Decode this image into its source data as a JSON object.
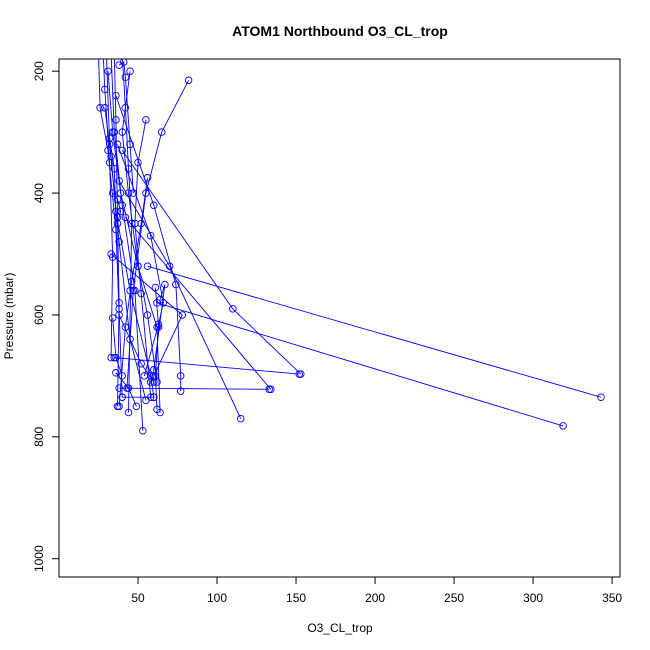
{
  "chart_data": {
    "type": "line",
    "title": "ATOM1 Northbound O3_CL_trop",
    "xlabel": "O3_CL_trop",
    "ylabel": "Pressure (mbar)",
    "xlim": [
      0,
      355
    ],
    "ylim": [
      1030,
      180
    ],
    "y_reversed": true,
    "xticks": [
      50,
      100,
      150,
      200,
      250,
      300,
      350
    ],
    "yticks": [
      200,
      400,
      600,
      800,
      1000
    ],
    "grid": false,
    "legend": "none",
    "series_color": "#0000ff",
    "marker": "open-circle",
    "series": [
      {
        "values": [
          [
            30,
            170
          ],
          [
            32,
            320
          ],
          [
            38,
            480
          ],
          [
            45,
            640
          ],
          [
            55,
            740
          ]
        ]
      },
      {
        "values": [
          [
            33,
            170
          ],
          [
            35,
            300
          ],
          [
            40,
            420
          ],
          [
            48,
            560
          ],
          [
            53,
            790
          ]
        ]
      },
      {
        "values": [
          [
            28,
            170
          ],
          [
            29,
            230
          ],
          [
            32,
            350
          ],
          [
            34,
            505
          ],
          [
            33,
            670
          ]
        ]
      },
      {
        "values": [
          [
            35,
            170
          ],
          [
            36,
            280
          ],
          [
            37,
            440
          ],
          [
            38,
            580
          ],
          [
            37,
            750
          ]
        ]
      },
      {
        "values": [
          [
            40,
            170
          ],
          [
            42,
            260
          ],
          [
            44,
            360
          ],
          [
            46,
            450
          ],
          [
            44,
            760
          ]
        ]
      },
      {
        "values": [
          [
            25,
            170
          ],
          [
            26,
            260
          ],
          [
            31,
            330
          ],
          [
            36,
            460
          ],
          [
            38,
            590
          ],
          [
            40,
            735
          ]
        ]
      },
      {
        "values": [
          [
            31,
            200
          ],
          [
            34,
            300
          ],
          [
            39,
            400
          ],
          [
            50,
            520
          ],
          [
            62,
            620
          ],
          [
            64,
            760
          ]
        ]
      },
      {
        "values": [
          [
            29,
            260
          ],
          [
            33,
            340
          ],
          [
            36,
            430
          ],
          [
            45,
            560
          ],
          [
            58,
            700
          ],
          [
            60,
            735
          ]
        ]
      },
      {
        "values": [
          [
            32,
            310
          ],
          [
            35,
            360
          ],
          [
            38,
            600
          ],
          [
            52,
            680
          ],
          [
            60,
            710
          ]
        ]
      },
      {
        "values": [
          [
            45,
            200
          ],
          [
            40,
            300
          ],
          [
            44,
            400
          ],
          [
            50,
            520
          ],
          [
            56,
            600
          ],
          [
            62,
            710
          ]
        ]
      },
      {
        "values": [
          [
            82,
            215
          ],
          [
            65,
            300
          ],
          [
            55,
            400
          ],
          [
            47,
            560
          ],
          [
            43,
            720
          ]
        ]
      },
      {
        "values": [
          [
            55,
            280
          ],
          [
            50,
            350
          ],
          [
            48,
            450
          ],
          [
            52,
            565
          ],
          [
            58,
            735
          ]
        ]
      },
      {
        "values": [
          [
            56,
            375
          ],
          [
            52,
            450
          ],
          [
            46,
            545
          ],
          [
            42,
            620
          ],
          [
            38,
            750
          ]
        ]
      },
      {
        "values": [
          [
            36,
            240
          ],
          [
            60,
            420
          ],
          [
            74,
            550
          ],
          [
            77,
            700
          ],
          [
            77,
            725
          ]
        ]
      },
      {
        "values": [
          [
            37,
            320
          ],
          [
            58,
            470
          ],
          [
            66,
            580
          ],
          [
            63,
            615
          ],
          [
            54,
            700
          ]
        ]
      },
      {
        "values": [
          [
            38,
            380
          ],
          [
            70,
            520
          ],
          [
            115,
            770
          ]
        ]
      },
      {
        "values": [
          [
            40,
            330
          ],
          [
            110,
            590
          ],
          [
            153,
            697
          ]
        ]
      },
      {
        "values": [
          [
            42,
            440
          ],
          [
            134,
            722
          ]
        ]
      },
      {
        "values": [
          [
            56,
            520
          ],
          [
            343,
            735
          ]
        ]
      },
      {
        "values": [
          [
            62,
            580
          ],
          [
            319,
            782
          ]
        ]
      },
      {
        "values": [
          [
            33,
            500
          ],
          [
            78,
            600
          ],
          [
            60,
            700
          ]
        ]
      },
      {
        "values": [
          [
            34,
            605
          ],
          [
            36,
            670
          ],
          [
            40,
            700
          ]
        ]
      },
      {
        "values": [
          [
            35,
            670
          ],
          [
            152,
            697
          ]
        ]
      },
      {
        "values": [
          [
            38,
            720
          ],
          [
            133,
            722
          ]
        ]
      },
      {
        "values": [
          [
            40,
            735
          ],
          [
            60,
            735
          ]
        ]
      },
      {
        "values": [
          [
            36,
            695
          ],
          [
            44,
            720
          ],
          [
            49,
            750
          ]
        ]
      },
      {
        "values": [
          [
            61,
            555
          ],
          [
            63,
            620
          ],
          [
            61,
            700
          ],
          [
            62,
            755
          ]
        ]
      },
      {
        "values": [
          [
            64,
            575
          ],
          [
            67,
            550
          ],
          [
            60,
            690
          ],
          [
            58,
            710
          ]
        ]
      },
      {
        "values": [
          [
            38,
            190
          ],
          [
            41,
            185
          ],
          [
            42,
            210
          ],
          [
            45,
            320
          ],
          [
            47,
            400
          ]
        ]
      },
      {
        "values": [
          [
            34,
            400
          ],
          [
            37,
            410
          ],
          [
            39,
            430
          ],
          [
            37,
            450
          ]
        ]
      }
    ]
  }
}
